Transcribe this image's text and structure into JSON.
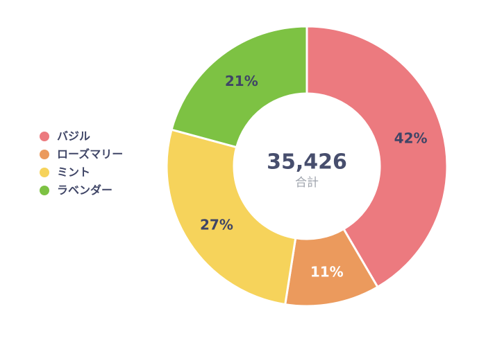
{
  "chart_data": {
    "type": "pie",
    "variant": "donut",
    "title": "",
    "legend_position": "left",
    "start_angle_deg": 0,
    "direction": "clockwise",
    "center": {
      "total": "35,426",
      "label": "合計"
    },
    "series": [
      {
        "label": "バジル",
        "value": 42,
        "display": "42%",
        "color": "#ec7a7f",
        "label_color": "#3f4566"
      },
      {
        "label": "ローズマリー",
        "value": 11,
        "display": "11%",
        "color": "#eb9a5d",
        "label_color": "#ffffff"
      },
      {
        "label": "ミント",
        "value": 27,
        "display": "27%",
        "color": "#f6d35b",
        "label_color": "#3f4566"
      },
      {
        "label": "ラベンダー",
        "value": 21,
        "display": "21%",
        "color": "#7dc243",
        "label_color": "#3f4566"
      }
    ]
  },
  "colors": {
    "background": "#ffffff",
    "center_total": "#474e6d",
    "center_label": "#9ea3ac",
    "legend_text": "#3f4566",
    "slice_gap": "#ffffff"
  }
}
